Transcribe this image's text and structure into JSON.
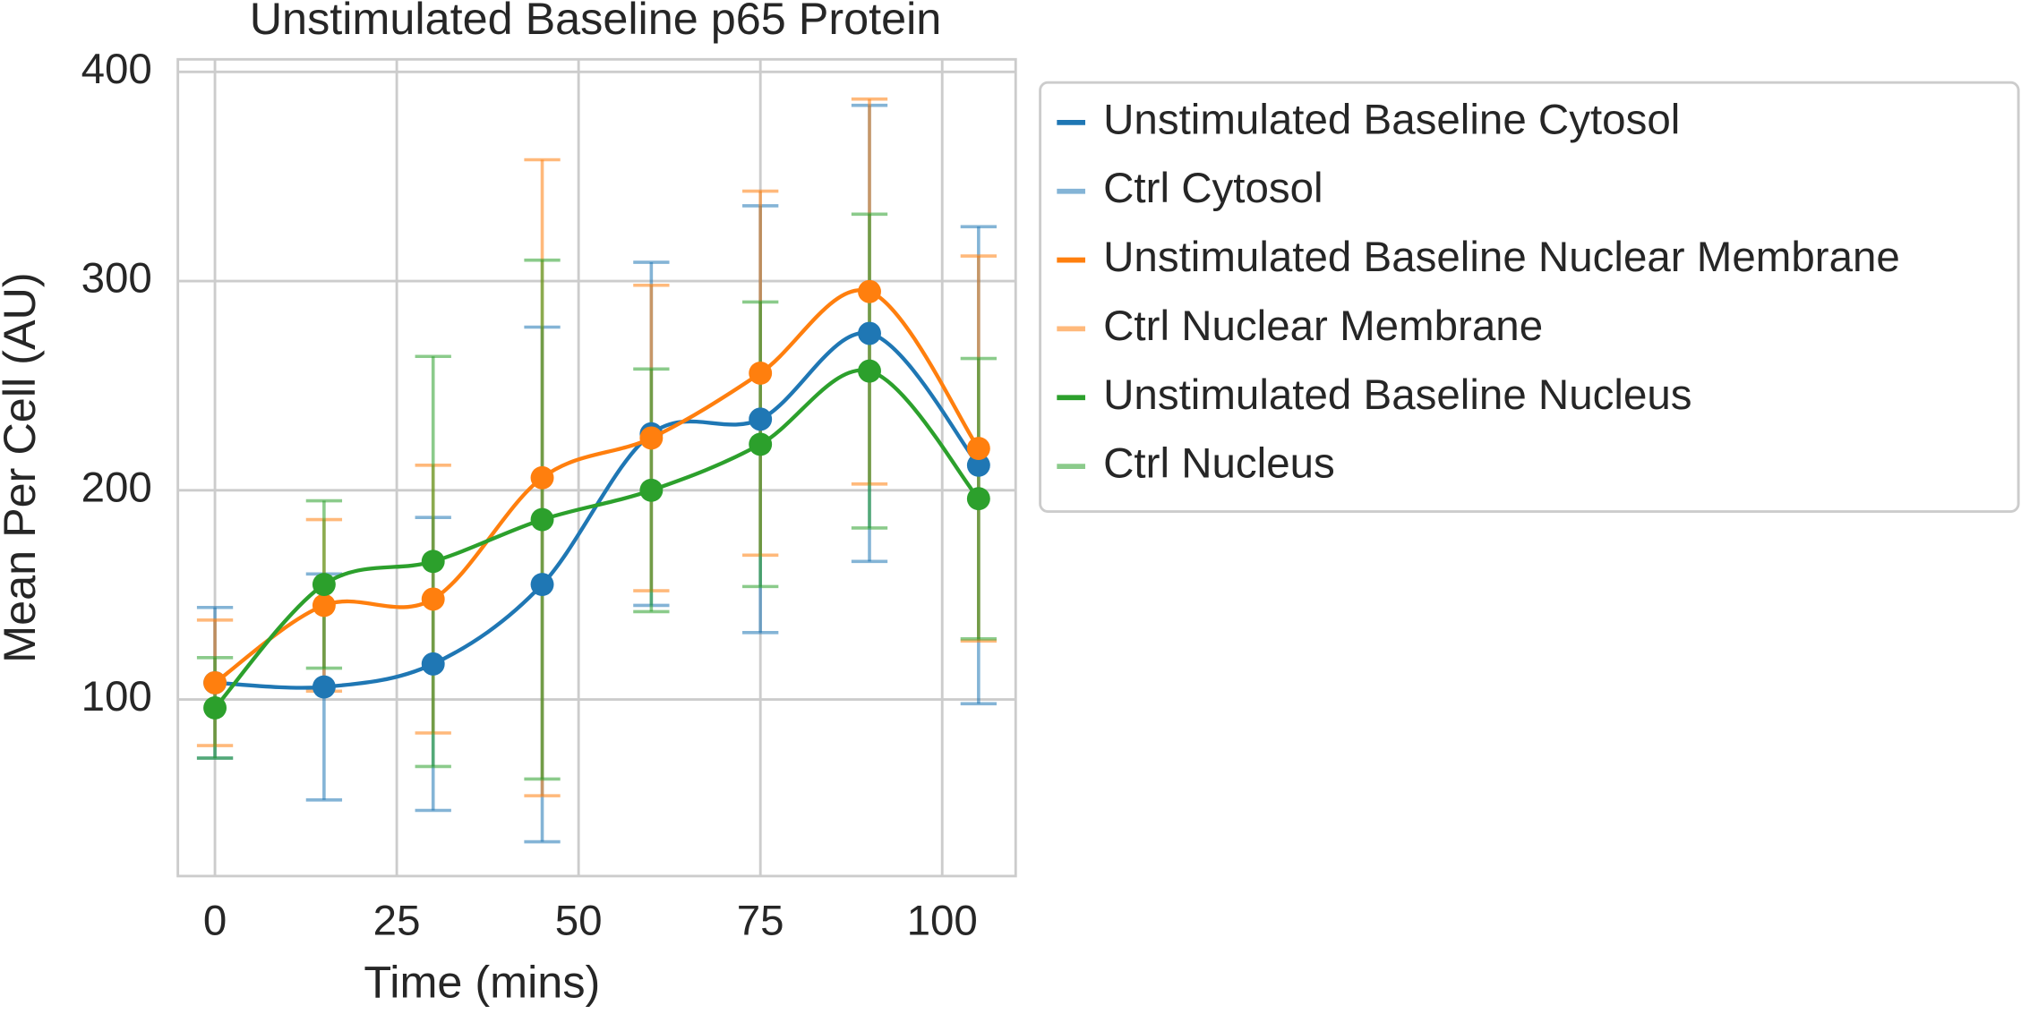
{
  "chart_data": {
    "type": "line",
    "title": "Unstimulated Baseline p65 Protein",
    "xlabel": "Time (mins)",
    "ylabel": "Mean Per Cell (AU)",
    "x": [
      0,
      15,
      30,
      45,
      60,
      75,
      90,
      105
    ],
    "xlim": [
      -5.1,
      110.1
    ],
    "xticks": [
      0,
      25,
      50,
      75,
      100
    ],
    "ylim": [
      15.6,
      406
    ],
    "yticks": [
      100,
      200,
      300,
      400
    ],
    "grid": true,
    "legend": "outside upper right",
    "series": [
      {
        "name": "Unstimulated Baseline Cytosol",
        "color": "#1f77b4",
        "values": [
          108,
          106,
          117,
          155,
          227,
          234,
          275,
          212
        ]
      },
      {
        "name": "Ctrl Cytosol",
        "color": "#1f77b4",
        "alpha": 0.55,
        "errorbar_of": 0,
        "errors": [
          36,
          54,
          70,
          123,
          82,
          102,
          109,
          114
        ]
      },
      {
        "name": "Unstimulated Baseline Nuclear Membrane",
        "color": "#ff7f0e",
        "values": [
          108,
          145,
          148,
          206,
          225,
          256,
          295,
          220
        ]
      },
      {
        "name": "Ctrl Nuclear Membrane",
        "color": "#ff7f0e",
        "alpha": 0.55,
        "errorbar_of": 2,
        "errors": [
          30,
          41,
          64,
          152,
          73,
          87,
          92,
          92
        ]
      },
      {
        "name": "Unstimulated Baseline Nucleus",
        "color": "#2ca02c",
        "values": [
          96,
          155,
          166,
          186,
          200,
          222,
          257,
          196
        ]
      },
      {
        "name": "Ctrl Nucleus",
        "color": "#2ca02c",
        "alpha": 0.55,
        "errorbar_of": 4,
        "errors": [
          24,
          40,
          98,
          124,
          58,
          68,
          75,
          67
        ]
      }
    ]
  }
}
